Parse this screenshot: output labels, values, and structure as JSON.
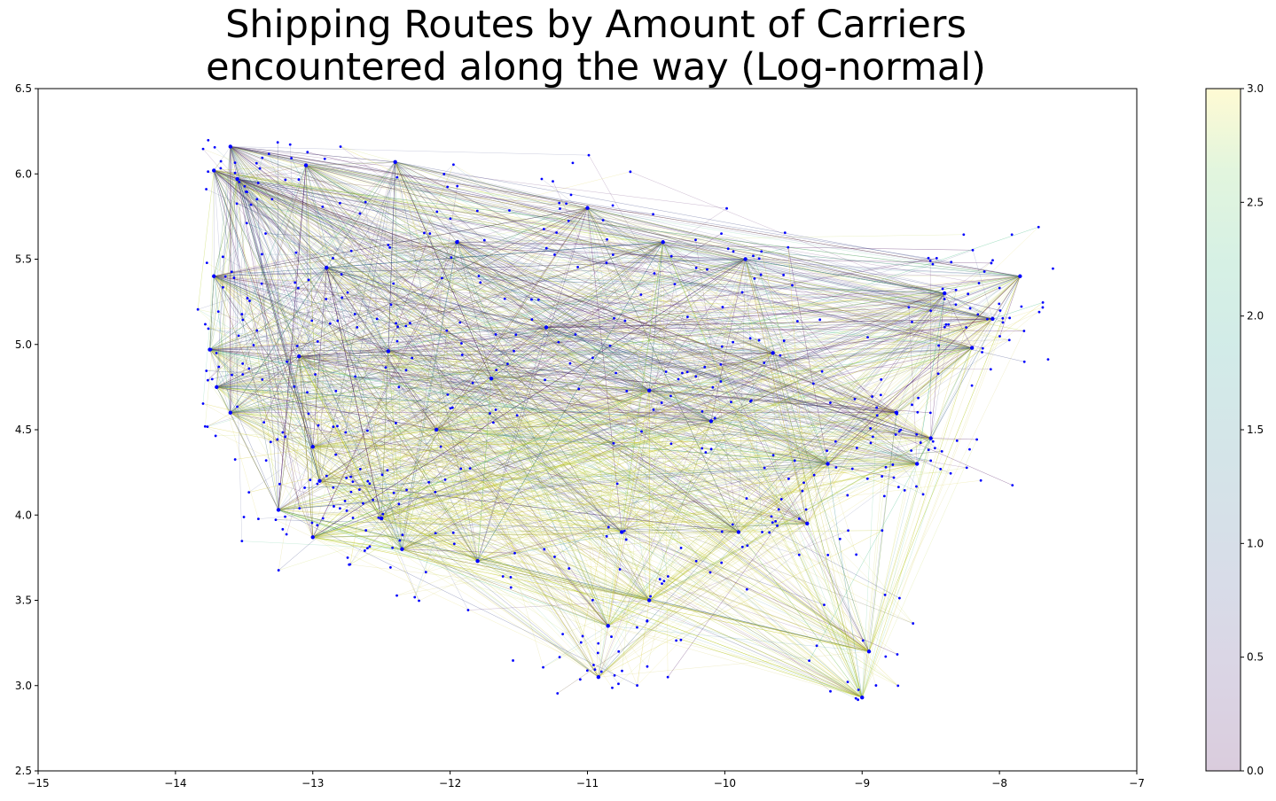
{
  "chart_data": {
    "type": "scatter",
    "title_lines": [
      "Shipping Routes by Amount of Carriers",
      "encountered along the way (Log-normal)"
    ],
    "xlabel": "",
    "ylabel": "",
    "xlim": [
      -15,
      -7
    ],
    "ylim": [
      2.5,
      6.5
    ],
    "x_ticks": [
      -15,
      -14,
      -13,
      -12,
      -11,
      -10,
      -9,
      -8,
      -7
    ],
    "x_tick_labels": [
      "−15",
      "−14",
      "−13",
      "−12",
      "−11",
      "−10",
      "−9",
      "−8",
      "−7"
    ],
    "y_ticks": [
      2.5,
      3.0,
      3.5,
      4.0,
      4.5,
      5.0,
      5.5,
      6.0,
      6.5
    ],
    "y_tick_labels": [
      "2.5",
      "3.0",
      "3.5",
      "4.0",
      "4.5",
      "5.0",
      "5.5",
      "6.0",
      "6.5"
    ],
    "grid": false,
    "marker_color": "#0000ff",
    "colorbar": {
      "range": [
        0.0,
        3.0
      ],
      "ticks": [
        0.0,
        0.5,
        1.0,
        1.5,
        2.0,
        2.5,
        3.0
      ],
      "tick_labels": [
        "0.0",
        "0.5",
        "1.0",
        "1.5",
        "2.0",
        "2.5",
        "3.0"
      ],
      "colormap": "viridis (alpha 0.2)"
    },
    "hubs": [
      {
        "x": -13.6,
        "y": 6.16
      },
      {
        "x": -13.72,
        "y": 6.02
      },
      {
        "x": -13.55,
        "y": 5.97
      },
      {
        "x": -13.05,
        "y": 6.05
      },
      {
        "x": -12.4,
        "y": 6.07
      },
      {
        "x": -13.72,
        "y": 5.4
      },
      {
        "x": -13.75,
        "y": 4.97
      },
      {
        "x": -13.7,
        "y": 4.75
      },
      {
        "x": -13.6,
        "y": 4.6
      },
      {
        "x": -13.1,
        "y": 4.93
      },
      {
        "x": -12.9,
        "y": 5.45
      },
      {
        "x": -12.45,
        "y": 4.96
      },
      {
        "x": -13.0,
        "y": 4.4
      },
      {
        "x": -12.95,
        "y": 4.2
      },
      {
        "x": -13.25,
        "y": 4.03
      },
      {
        "x": -13.0,
        "y": 3.87
      },
      {
        "x": -12.5,
        "y": 3.98
      },
      {
        "x": -12.35,
        "y": 3.8
      },
      {
        "x": -11.8,
        "y": 3.73
      },
      {
        "x": -11.7,
        "y": 4.8
      },
      {
        "x": -11.95,
        "y": 5.6
      },
      {
        "x": -11.0,
        "y": 5.8
      },
      {
        "x": -10.55,
        "y": 4.73
      },
      {
        "x": -10.45,
        "y": 5.6
      },
      {
        "x": -10.75,
        "y": 3.9
      },
      {
        "x": -10.85,
        "y": 3.35
      },
      {
        "x": -10.55,
        "y": 3.5
      },
      {
        "x": -10.92,
        "y": 3.05
      },
      {
        "x": -10.1,
        "y": 4.55
      },
      {
        "x": -9.9,
        "y": 3.9
      },
      {
        "x": -9.65,
        "y": 4.95
      },
      {
        "x": -9.4,
        "y": 3.95
      },
      {
        "x": -9.25,
        "y": 4.3
      },
      {
        "x": -9.0,
        "y": 2.93
      },
      {
        "x": -8.95,
        "y": 3.2
      },
      {
        "x": -8.75,
        "y": 4.6
      },
      {
        "x": -8.6,
        "y": 4.3
      },
      {
        "x": -8.5,
        "y": 4.45
      },
      {
        "x": -8.2,
        "y": 4.98
      },
      {
        "x": -8.05,
        "y": 5.15
      },
      {
        "x": -7.85,
        "y": 5.4
      },
      {
        "x": -8.4,
        "y": 5.3
      },
      {
        "x": -9.85,
        "y": 5.5
      },
      {
        "x": -11.3,
        "y": 5.1
      },
      {
        "x": -12.1,
        "y": 4.5
      }
    ]
  }
}
